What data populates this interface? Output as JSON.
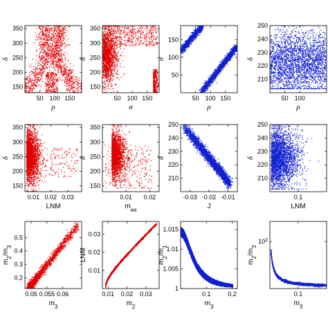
{
  "colors": {
    "red": "#e00000",
    "blue": "#1020d0"
  },
  "chart_data": [
    {
      "type": "scatter",
      "color": "red",
      "shape": "rho_delta",
      "xlabel": "ρ",
      "ylabel": "δ",
      "xlim": [
        0,
        190
      ],
      "ylim": [
        130,
        360
      ],
      "xticks": [
        50,
        100,
        150
      ],
      "xtick_labels": [
        "50",
        "100",
        "150"
      ],
      "yticks": [
        150,
        200,
        250,
        300,
        350
      ],
      "ytick_labels": [
        "150",
        "200",
        "250",
        "300",
        "350"
      ]
    },
    {
      "type": "scatter",
      "color": "red",
      "shape": "sigma_delta",
      "xlabel": "σ",
      "ylabel": "δ",
      "xlim": [
        0,
        190
      ],
      "ylim": [
        130,
        360
      ],
      "xticks": [
        50,
        100,
        150
      ],
      "xtick_labels": [
        "50",
        "100",
        "150"
      ],
      "yticks": [
        150,
        200,
        250,
        300,
        350
      ],
      "ytick_labels": [
        "150",
        "200",
        "250",
        "300",
        "350"
      ]
    },
    {
      "type": "scatter",
      "color": "blue",
      "shape": "rho_sigma",
      "xlabel": "ρ",
      "ylabel": "σ",
      "xlim": [
        0,
        190
      ],
      "ylim": [
        0,
        190
      ],
      "xticks": [
        50,
        100,
        150
      ],
      "xtick_labels": [
        "50",
        "100",
        "150"
      ],
      "yticks": [
        50,
        100,
        150
      ],
      "ytick_labels": [
        "50",
        "100",
        "150"
      ]
    },
    {
      "type": "scatter",
      "color": "blue",
      "shape": "rho_delta_narrow",
      "xlabel": "ρ",
      "ylabel": "δ",
      "xlim": [
        0,
        190
      ],
      "ylim": [
        200,
        250
      ],
      "xticks": [
        50,
        100
      ],
      "xtick_labels": [
        "50",
        "100"
      ],
      "yticks": [
        210,
        220,
        230,
        240,
        250
      ],
      "ytick_labels": [
        "210",
        "220",
        "230",
        "240",
        "250"
      ]
    },
    {
      "type": "scatter",
      "color": "red",
      "shape": "lnm_delta",
      "xlabel": "LNM",
      "ylabel": "δ",
      "xlim": [
        0.005,
        0.038
      ],
      "ylim": [
        130,
        360
      ],
      "xticks": [
        0.01,
        0.02,
        0.03
      ],
      "xtick_labels": [
        "0.01",
        "0.02",
        "0.03"
      ],
      "yticks": [
        150,
        200,
        250,
        300,
        350
      ],
      "ytick_labels": [
        "150",
        "200",
        "250",
        "300",
        "350"
      ]
    },
    {
      "type": "scatter",
      "color": "red",
      "shape": "mee_delta",
      "xlabel": "m_ee",
      "ylabel": "δ",
      "xlim": [
        0,
        0.024
      ],
      "ylim": [
        130,
        360
      ],
      "xticks": [
        0.01,
        0.02
      ],
      "xtick_labels": [
        "0.01",
        "0.02"
      ],
      "yticks": [
        150,
        200,
        250,
        300,
        350
      ],
      "ytick_labels": [
        "150",
        "200",
        "250",
        "300",
        "350"
      ]
    },
    {
      "type": "scatter",
      "color": "blue",
      "shape": "j_delta",
      "xlabel": "J",
      "ylabel": "δ",
      "xlim": [
        -0.035,
        -0.005
      ],
      "ylim": [
        200,
        250
      ],
      "xticks": [
        -0.03,
        -0.02,
        -0.01
      ],
      "xtick_labels": [
        "-0.03",
        "-0.02",
        "-0.01"
      ],
      "yticks": [
        210,
        220,
        230,
        240,
        250
      ],
      "ytick_labels": [
        "210",
        "220",
        "230",
        "240",
        "250"
      ]
    },
    {
      "type": "scatter",
      "color": "blue",
      "shape": "lnm_delta_blue",
      "xlabel": "LNM",
      "ylabel": "δ",
      "xlim": [
        0,
        0.2
      ],
      "ylim": [
        200,
        250
      ],
      "xticks": [
        0.1
      ],
      "xtick_labels": [
        "0.1"
      ],
      "yticks": [
        210,
        220,
        230,
        240,
        250
      ],
      "ytick_labels": [
        "210",
        "220",
        "230",
        "240",
        "250"
      ]
    },
    {
      "type": "scatter",
      "color": "red",
      "shape": "m3_m2m3",
      "xlabel": "m_3",
      "ylabel": "m_2/m_3",
      "xlim": [
        0.048,
        0.066
      ],
      "ylim": [
        0.12,
        0.62
      ],
      "xticks": [
        0.05,
        0.055,
        0.06
      ],
      "xtick_labels": [
        "0.05",
        "0.055",
        "0.06"
      ],
      "yticks": [
        0.2,
        0.3,
        0.4,
        0.5
      ],
      "ytick_labels": [
        "0.2",
        "0.3",
        "0.4",
        "0.5"
      ]
    },
    {
      "type": "scatter",
      "color": "red",
      "shape": "m2_lnm",
      "xlabel": "m_2",
      "ylabel": "LNM",
      "xlim": [
        0.007,
        0.037
      ],
      "ylim": [
        0,
        0.037
      ],
      "xticks": [
        0.01,
        0.02,
        0.03
      ],
      "xtick_labels": [
        "0.01",
        "0.02",
        "0.03"
      ],
      "yticks": [
        0.01,
        0.02,
        0.03
      ],
      "ytick_labels": [
        "0.01",
        "0.02",
        "0.03"
      ]
    },
    {
      "type": "scatter",
      "color": "blue",
      "shape": "m3_m2m1",
      "xlabel": "m_3",
      "ylabel": "m_2/m_1",
      "xlim": [
        0,
        0.22
      ],
      "ylim": [
        1.0,
        1.017
      ],
      "xticks": [
        0.1,
        0.2
      ],
      "xtick_labels": [
        "0.1",
        "0.2"
      ],
      "yticks": [
        1.0,
        1.005,
        1.01,
        1.015
      ],
      "ytick_labels": [
        "1",
        "1.005",
        "1.01",
        "1.015"
      ]
    },
    {
      "type": "scatter",
      "color": "blue",
      "shape": "m3_m2m3_log",
      "xlabel": "m_3",
      "ylabel": "m_2/m_3",
      "xlim": [
        0,
        0.2
      ],
      "ylim": [
        0,
        1.0
      ],
      "xticks": [
        0.1
      ],
      "xtick_labels": [
        "0.1"
      ],
      "yticks": [
        0.7
      ],
      "ytick_labels": [
        "10^2"
      ],
      "yscale": "log"
    }
  ]
}
